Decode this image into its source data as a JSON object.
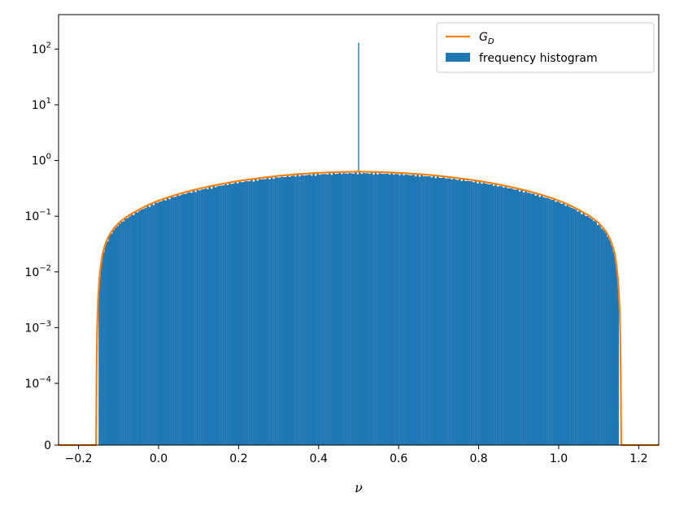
{
  "chart_data": {
    "type": "histogram",
    "xlabel": "ν",
    "ylabel": "",
    "title": "",
    "xlim": [
      -0.25,
      1.25
    ],
    "yscale": "symlog",
    "ylim": [
      0,
      200
    ],
    "symlog_linthresh": 0.0001,
    "x_ticks": [
      -0.2,
      0.0,
      0.2,
      0.4,
      0.6,
      0.8,
      1.0,
      1.2
    ],
    "x_tick_labels": [
      "−0.2",
      "0.0",
      "0.2",
      "0.4",
      "0.6",
      "0.8",
      "1.0",
      "1.2"
    ],
    "y_ticks": [
      {
        "value": 0,
        "base": "0",
        "exp": ""
      },
      {
        "value": 0.0001,
        "base": "10",
        "exp": "−4"
      },
      {
        "value": 0.001,
        "base": "10",
        "exp": "−3"
      },
      {
        "value": 0.01,
        "base": "10",
        "exp": "−2"
      },
      {
        "value": 0.1,
        "base": "10",
        "exp": "−1"
      },
      {
        "value": 1,
        "base": "10",
        "exp": "0"
      },
      {
        "value": 10,
        "base": "10",
        "exp": "1"
      },
      {
        "value": 100,
        "base": "10",
        "exp": "2"
      }
    ],
    "legend": {
      "placement": "upper-right",
      "entries": [
        {
          "label_main": "G",
          "label_sub": "D",
          "kind": "line",
          "color": "#ff7f0e"
        },
        {
          "label_main": "frequency histogram",
          "label_sub": "",
          "kind": "patch",
          "color": "#1f77b4"
        }
      ]
    },
    "series": [
      {
        "kind": "curve",
        "color": "#ff7f0e",
        "support": [
          -0.155,
          1.155
        ],
        "x": [
          -0.25,
          -0.1555,
          -0.155,
          -0.154,
          -0.152,
          -0.15,
          -0.145,
          -0.14,
          -0.13,
          -0.12,
          -0.1,
          -0.08,
          -0.05,
          0.0,
          0.05,
          0.1,
          0.15,
          0.2,
          0.25,
          0.3,
          0.35,
          0.4,
          0.45,
          0.5,
          0.55,
          0.6,
          0.65,
          0.7,
          0.75,
          0.8,
          0.85,
          0.9,
          0.95,
          1.0,
          1.05,
          1.08,
          1.1,
          1.12,
          1.13,
          1.14,
          1.145,
          1.15,
          1.152,
          1.154,
          1.155,
          1.1555,
          1.25
        ],
        "y": [
          0,
          0,
          0.00015,
          0.0006,
          0.0022,
          0.0045,
          0.012,
          0.021,
          0.036,
          0.05,
          0.075,
          0.097,
          0.13,
          0.19,
          0.25,
          0.31,
          0.37,
          0.43,
          0.48,
          0.53,
          0.57,
          0.6,
          0.62,
          0.63,
          0.62,
          0.6,
          0.57,
          0.53,
          0.48,
          0.43,
          0.37,
          0.31,
          0.25,
          0.19,
          0.13,
          0.097,
          0.075,
          0.05,
          0.036,
          0.021,
          0.012,
          0.0045,
          0.0022,
          0.0006,
          0.00015,
          0,
          0
        ]
      },
      {
        "kind": "bars",
        "color": "#1f77b4",
        "bin_range": [
          -0.15,
          1.15
        ],
        "bins": 260,
        "spike": {
          "x": 0.5,
          "y": 130
        }
      }
    ]
  }
}
